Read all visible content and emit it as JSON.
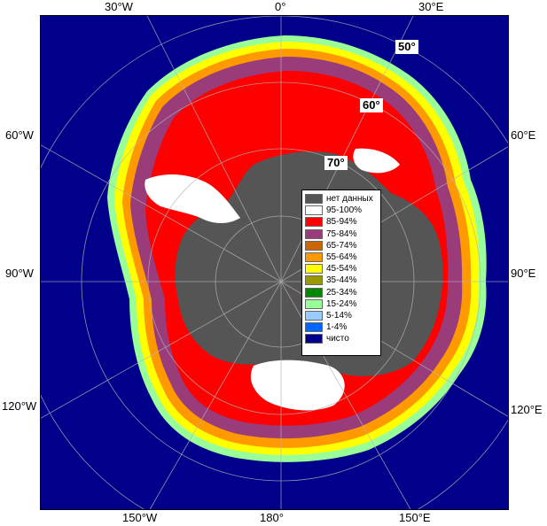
{
  "map": {
    "edge_labels": {
      "top_30w": "30°W",
      "top_0": "0°",
      "top_30e": "30°E",
      "left_60w": "60°W",
      "left_90w": "90°W",
      "left_120w": "120°W",
      "right_60e": "60°E",
      "right_90e": "90°E",
      "right_120e": "120°E",
      "bottom_150w": "150°W",
      "bottom_180": "180°",
      "bottom_150e": "150°E"
    },
    "lat_labels": {
      "lat50": "50°",
      "lat60": "60°",
      "lat70": "70°"
    },
    "colors": {
      "open_water": "#00008b",
      "land": "#555555",
      "ice_95_100": "#ffffff",
      "ice_85_94": "#ff0000",
      "ice_75_84": "#9a3b7a",
      "ice_65_74": "#cc6600",
      "ice_55_64": "#ff9900",
      "ice_45_54": "#ffff00",
      "ice_35_44": "#999900",
      "ice_25_34": "#008800",
      "ice_15_24": "#99ff99",
      "ice_5_14": "#99ccff",
      "ice_1_4": "#0066ff"
    }
  },
  "legend": {
    "items": [
      {
        "label": "нет данных",
        "color": "#555555"
      },
      {
        "label": "95-100%",
        "color": "#ffffff"
      },
      {
        "label": "85-94%",
        "color": "#ff0000"
      },
      {
        "label": "75-84%",
        "color": "#9a3b7a"
      },
      {
        "label": "65-74%",
        "color": "#cc6600"
      },
      {
        "label": "55-64%",
        "color": "#ff9900"
      },
      {
        "label": "45-54%",
        "color": "#ffff00"
      },
      {
        "label": "35-44%",
        "color": "#999900"
      },
      {
        "label": "25-34%",
        "color": "#008800"
      },
      {
        "label": "15-24%",
        "color": "#99ff99"
      },
      {
        "label": "5-14%",
        "color": "#99ccff"
      },
      {
        "label": "1-4%",
        "color": "#0066ff"
      },
      {
        "label": "чисто",
        "color": "#00008b"
      }
    ]
  }
}
